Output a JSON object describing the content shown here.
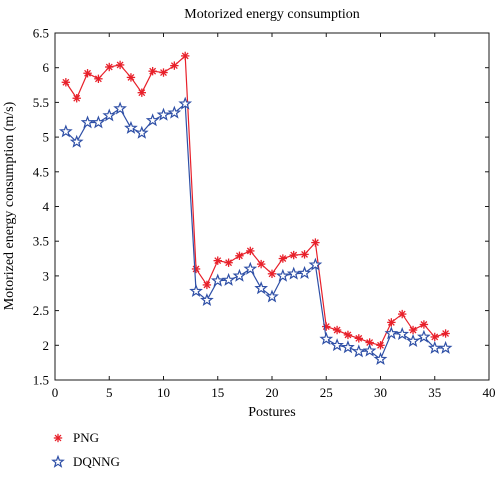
{
  "chart_data": {
    "type": "line",
    "title": "Motorized energy consumption",
    "xlabel": "Postures",
    "ylabel": "Motorized energy consumption (m/s)",
    "xlim": [
      0,
      40
    ],
    "ylim": [
      1.5,
      6.5
    ],
    "x_ticks": [
      "0",
      "5",
      "10",
      "15",
      "20",
      "25",
      "30",
      "35",
      "40"
    ],
    "y_ticks": [
      "1.5",
      "2",
      "2.5",
      "3",
      "3.5",
      "4",
      "4.5",
      "5",
      "5.5",
      "6",
      "6.5"
    ],
    "grid": false,
    "legend_position": "bottom-left, below plot",
    "x": [
      1,
      2,
      3,
      4,
      5,
      6,
      7,
      8,
      9,
      10,
      11,
      12,
      13,
      14,
      15,
      16,
      17,
      18,
      19,
      20,
      21,
      22,
      23,
      24,
      25,
      26,
      27,
      28,
      29,
      30,
      31,
      32,
      33,
      34,
      35,
      36
    ],
    "series": [
      {
        "name": "PNG",
        "color": "#e8202a",
        "marker": "asterisk",
        "values": [
          5.79,
          5.56,
          5.92,
          5.84,
          6.01,
          6.04,
          5.86,
          5.64,
          5.95,
          5.93,
          6.03,
          6.17,
          3.1,
          2.87,
          3.22,
          3.19,
          3.29,
          3.36,
          3.17,
          3.03,
          3.25,
          3.3,
          3.31,
          3.48,
          2.27,
          2.22,
          2.15,
          2.1,
          2.04,
          2.0,
          2.33,
          2.45,
          2.22,
          2.3,
          2.12,
          2.17
        ]
      },
      {
        "name": "DQNNG",
        "color": "#2e4fa6",
        "marker": "star",
        "values": [
          5.08,
          4.93,
          5.21,
          5.21,
          5.31,
          5.41,
          5.13,
          5.06,
          5.24,
          5.32,
          5.35,
          5.48,
          2.78,
          2.65,
          2.93,
          2.94,
          3.0,
          3.1,
          2.82,
          2.7,
          3.0,
          3.03,
          3.04,
          3.16,
          2.09,
          2.0,
          1.97,
          1.91,
          1.92,
          1.8,
          2.17,
          2.16,
          2.06,
          2.12,
          1.96,
          1.96
        ]
      }
    ]
  }
}
